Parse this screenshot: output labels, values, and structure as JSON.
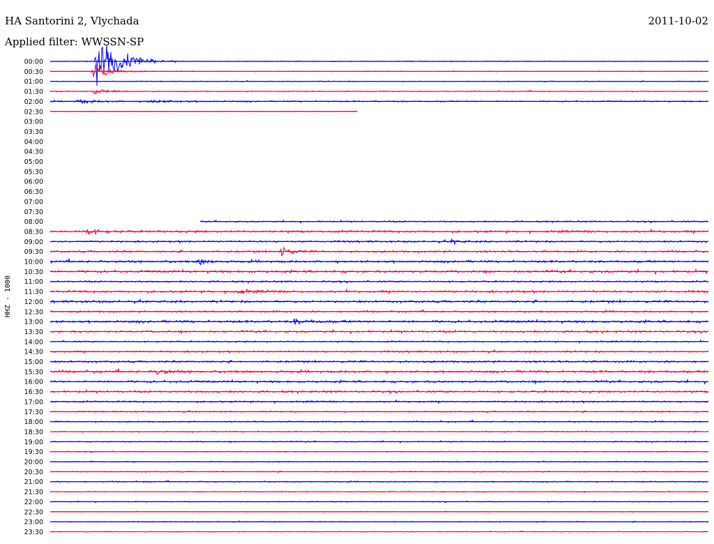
{
  "header": {
    "station": "HA Santorini 2, Vlychada",
    "date": "2011-10-02",
    "filter": "Applied filter: WWSSN-SP"
  },
  "chart_data": {
    "type": "line",
    "title": "HA Santorini 2, Vlychada",
    "ylabel": "HHZ - 1000",
    "row_labels": [
      "00:00",
      "00:30",
      "01:00",
      "01:30",
      "02:00",
      "02:30",
      "03:00",
      "03:30",
      "04:00",
      "04:30",
      "05:00",
      "05:30",
      "06:00",
      "06:30",
      "07:00",
      "07:30",
      "08:00",
      "08:30",
      "09:00",
      "09:30",
      "10:00",
      "10:30",
      "11:00",
      "11:30",
      "12:00",
      "12:30",
      "13:00",
      "13:30",
      "14:00",
      "14:30",
      "15:00",
      "15:30",
      "16:00",
      "16:30",
      "17:00",
      "17:30",
      "18:00",
      "18:30",
      "19:00",
      "19:30",
      "20:00",
      "20:30",
      "21:00",
      "21:30",
      "22:00",
      "22:30",
      "23:00",
      "23:30"
    ],
    "row_minutes": 30,
    "colors": [
      "#0000ff",
      "#ff0033"
    ],
    "rows": [
      {
        "start": 0.0,
        "end": 1.0,
        "noise": 0.8,
        "events": [
          [
            0.07,
            1.0,
            0.03
          ]
        ]
      },
      {
        "start": 0.0,
        "end": 1.0,
        "noise": 0.8,
        "events": [
          [
            0.065,
            0.35,
            0.02
          ]
        ]
      },
      {
        "start": 0.0,
        "end": 1.0,
        "noise": 0.9,
        "events": []
      },
      {
        "start": 0.0,
        "end": 1.0,
        "noise": 1.0,
        "events": [
          [
            0.065,
            0.1,
            0.02
          ]
        ]
      },
      {
        "start": 0.0,
        "end": 1.0,
        "noise": 1.4,
        "events": [
          [
            0.04,
            0.06,
            0.03
          ],
          [
            0.15,
            0.05,
            0.04
          ]
        ]
      },
      {
        "start": 0.0,
        "end": 0.467,
        "noise": 0.7,
        "events": []
      },
      null,
      null,
      null,
      null,
      null,
      null,
      null,
      null,
      null,
      null,
      {
        "start": 0.228,
        "end": 1.0,
        "noise": 1.5,
        "events": []
      },
      {
        "start": 0.0,
        "end": 1.0,
        "noise": 2.4,
        "events": [
          [
            0.053,
            0.12,
            0.02
          ]
        ]
      },
      {
        "start": 0.0,
        "end": 1.0,
        "noise": 2.0,
        "events": [
          [
            0.61,
            0.1,
            0.01
          ]
        ]
      },
      {
        "start": 0.0,
        "end": 1.0,
        "noise": 2.0,
        "events": [
          [
            0.35,
            0.24,
            0.012
          ]
        ]
      },
      {
        "start": 0.0,
        "end": 1.0,
        "noise": 2.4,
        "events": [
          [
            0.225,
            0.14,
            0.01
          ]
        ]
      },
      {
        "start": 0.0,
        "end": 1.0,
        "noise": 2.6,
        "events": []
      },
      {
        "start": 0.0,
        "end": 1.0,
        "noise": 1.8,
        "events": []
      },
      {
        "start": 0.0,
        "end": 1.0,
        "noise": 2.4,
        "events": [
          [
            0.28,
            0.1,
            0.015
          ]
        ]
      },
      {
        "start": 0.0,
        "end": 1.0,
        "noise": 2.4,
        "events": []
      },
      {
        "start": 0.0,
        "end": 1.0,
        "noise": 1.8,
        "events": []
      },
      {
        "start": 0.0,
        "end": 1.0,
        "noise": 2.6,
        "events": [
          [
            0.37,
            0.08,
            0.02
          ]
        ]
      },
      {
        "start": 0.0,
        "end": 1.0,
        "noise": 2.2,
        "events": []
      },
      {
        "start": 0.0,
        "end": 1.0,
        "noise": 1.6,
        "events": []
      },
      {
        "start": 0.0,
        "end": 1.0,
        "noise": 1.8,
        "events": []
      },
      {
        "start": 0.0,
        "end": 1.0,
        "noise": 2.0,
        "events": []
      },
      {
        "start": 0.0,
        "end": 1.0,
        "noise": 2.4,
        "events": [
          [
            0.16,
            0.12,
            0.015
          ]
        ]
      },
      {
        "start": 0.0,
        "end": 1.0,
        "noise": 2.4,
        "events": []
      },
      {
        "start": 0.0,
        "end": 1.0,
        "noise": 2.2,
        "events": []
      },
      {
        "start": 0.0,
        "end": 1.0,
        "noise": 1.8,
        "events": []
      },
      {
        "start": 0.0,
        "end": 1.0,
        "noise": 1.4,
        "events": []
      },
      {
        "start": 0.0,
        "end": 1.0,
        "noise": 1.3,
        "events": []
      },
      {
        "start": 0.0,
        "end": 1.0,
        "noise": 1.2,
        "events": []
      },
      {
        "start": 0.0,
        "end": 1.0,
        "noise": 1.2,
        "events": []
      },
      {
        "start": 0.0,
        "end": 1.0,
        "noise": 1.0,
        "events": []
      },
      {
        "start": 0.0,
        "end": 1.0,
        "noise": 1.0,
        "events": []
      },
      {
        "start": 0.0,
        "end": 1.0,
        "noise": 1.0,
        "events": []
      },
      {
        "start": 0.0,
        "end": 1.0,
        "noise": 1.2,
        "events": []
      },
      {
        "start": 0.0,
        "end": 1.0,
        "noise": 1.0,
        "events": []
      },
      {
        "start": 0.0,
        "end": 1.0,
        "noise": 0.9,
        "events": []
      },
      {
        "start": 0.0,
        "end": 1.0,
        "noise": 0.8,
        "events": []
      },
      {
        "start": 0.0,
        "end": 1.0,
        "noise": 0.9,
        "events": []
      },
      {
        "start": 0.0,
        "end": 1.0,
        "noise": 0.8,
        "events": []
      }
    ]
  }
}
